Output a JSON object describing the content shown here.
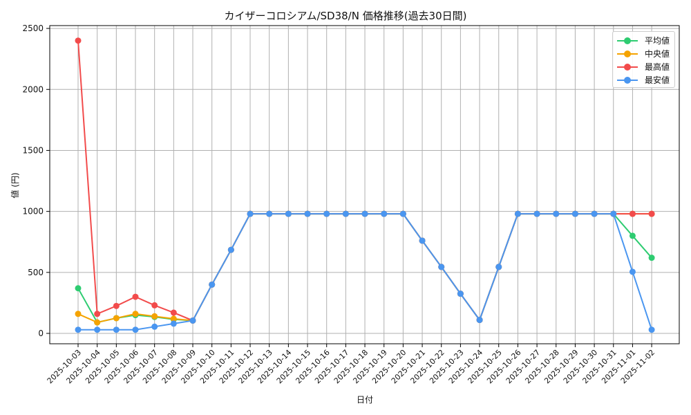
{
  "chart_data": {
    "type": "line",
    "title": "カイザーコロシアム/SD38/N 価格推移(過去30日間)",
    "xlabel": "日付",
    "ylabel": "値 (円)",
    "ylim": [
      -80,
      2520
    ],
    "yticks": [
      0,
      500,
      1000,
      1500,
      2000,
      2500
    ],
    "grid": true,
    "legend_position": "upper right",
    "x": [
      "2025-10-03",
      "2025-10-04",
      "2025-10-05",
      "2025-10-06",
      "2025-10-07",
      "2025-10-08",
      "2025-10-09",
      "2025-10-10",
      "2025-10-11",
      "2025-10-12",
      "2025-10-13",
      "2025-10-14",
      "2025-10-15",
      "2025-10-16",
      "2025-10-17",
      "2025-10-18",
      "2025-10-19",
      "2025-10-20",
      "2025-10-21",
      "2025-10-22",
      "2025-10-23",
      "2025-10-24",
      "2025-10-25",
      "2025-10-26",
      "2025-10-27",
      "2025-10-28",
      "2025-10-29",
      "2025-10-30",
      "2025-10-31",
      "2025-11-01",
      "2025-11-02"
    ],
    "series": [
      {
        "name": "平均値",
        "color": "#2ecc71",
        "values": [
          370,
          90,
          125,
          150,
          135,
          115,
          105,
          400,
          685,
          980,
          980,
          980,
          980,
          980,
          980,
          980,
          980,
          980,
          760,
          545,
          325,
          110,
          545,
          980,
          980,
          980,
          980,
          980,
          980,
          800,
          620
        ]
      },
      {
        "name": "中央値",
        "color": "#f5a300",
        "values": [
          160,
          90,
          125,
          160,
          140,
          120,
          105,
          400,
          685,
          980,
          980,
          980,
          980,
          980,
          980,
          980,
          980,
          980,
          760,
          545,
          325,
          110,
          545,
          980,
          980,
          980,
          980,
          980,
          980,
          980,
          980
        ]
      },
      {
        "name": "最高値",
        "color": "#f24b4b",
        "values": [
          2400,
          160,
          225,
          300,
          230,
          170,
          105,
          400,
          685,
          980,
          980,
          980,
          980,
          980,
          980,
          980,
          980,
          980,
          760,
          545,
          325,
          110,
          545,
          980,
          980,
          980,
          980,
          980,
          980,
          980,
          980
        ]
      },
      {
        "name": "最安値",
        "color": "#4a96f0",
        "values": [
          30,
          30,
          30,
          30,
          55,
          80,
          105,
          400,
          685,
          980,
          980,
          980,
          980,
          980,
          980,
          980,
          980,
          980,
          760,
          545,
          325,
          110,
          545,
          980,
          980,
          980,
          980,
          980,
          980,
          505,
          30
        ]
      }
    ]
  }
}
